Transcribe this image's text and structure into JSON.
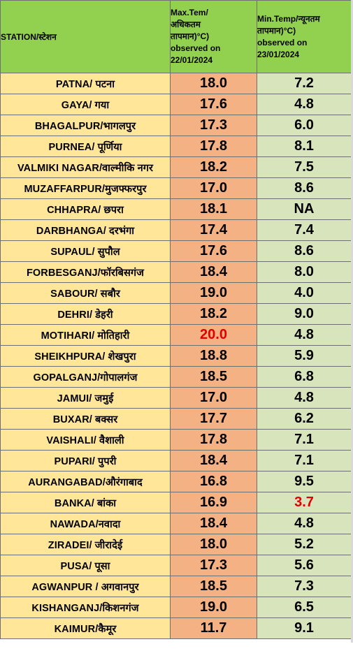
{
  "header": {
    "station": "STATION/स्टेशन",
    "max_lines": [
      "Max.Tem/",
      "अधिकतम",
      "तापमान)°C)",
      "observed on",
      "22/01/2024"
    ],
    "min_lines": [
      "Min.Temp/न्यूनतम",
      "तापमान)°C)",
      "observed on",
      "23/01/2024"
    ]
  },
  "rows": [
    {
      "station": "PATNA/ पटना",
      "max": "18.0",
      "min": "7.2"
    },
    {
      "station": "GAYA/ गया",
      "max": "17.6",
      "min": "4.8"
    },
    {
      "station": "BHAGALPUR/भागलपुर",
      "max": "17.3",
      "min": "6.0"
    },
    {
      "station": "PURNEA/ पूर्णिया",
      "max": "17.8",
      "min": "8.1"
    },
    {
      "station": "VALMIKI NAGAR/वाल्मीकि नगर",
      "max": "18.2",
      "min": "7.5"
    },
    {
      "station": "MUZAFFARPUR/मुजफ्फरपुर",
      "max": "17.0",
      "min": "8.6"
    },
    {
      "station": "CHHAPRA/ छपरा",
      "max": "18.1",
      "min": "NA"
    },
    {
      "station": "DARBHANGA/ दरभंगा",
      "max": "17.4",
      "min": "7.4"
    },
    {
      "station": "SUPAUL/ सुपौल",
      "max": "17.6",
      "min": "8.6"
    },
    {
      "station": "FORBESGANJ/फॉरबिसगंज",
      "max": "18.4",
      "min": "8.0"
    },
    {
      "station": "SABOUR/ सबौर",
      "max": "19.0",
      "min": "4.0"
    },
    {
      "station": "DEHRI/ डेहरी",
      "max": "18.2",
      "min": "9.0"
    },
    {
      "station": "MOTIHARI/ मोतिहारी",
      "max": "20.0",
      "min": "4.8"
    },
    {
      "station": "SHEIKHPURA/ शेखपुरा",
      "max": "18.8",
      "min": "5.9"
    },
    {
      "station": "GOPALGANJ/गोपालगंज",
      "max": "18.5",
      "min": "6.8"
    },
    {
      "station": "JAMUI/ जमुई",
      "max": "17.0",
      "min": "4.8"
    },
    {
      "station": "BUXAR/ बक्सर",
      "max": "17.7",
      "min": "6.2"
    },
    {
      "station": "VAISHALI/ वैशाली",
      "max": "17.8",
      "min": "7.1"
    },
    {
      "station": "PUPARI/ पुपरी",
      "max": "18.4",
      "min": "7.1"
    },
    {
      "station": "AURANGABAD/औरंगाबाद",
      "max": "16.8",
      "min": "9.5"
    },
    {
      "station": "BANKA/ बांका",
      "max": "16.9",
      "min": "3.7"
    },
    {
      "station": "NAWADA/नवादा",
      "max": "18.4",
      "min": "4.8"
    },
    {
      "station": "ZIRADEI/  जीरादेई",
      "max": "18.0",
      "min": "5.2"
    },
    {
      "station": "PUSA/  पूसा",
      "max": "17.3",
      "min": "5.6"
    },
    {
      "station": "AGWANPUR / अगवानपुर",
      "max": "18.5",
      "min": "7.3"
    },
    {
      "station": "KISHANGANJ/किशनगंज",
      "max": "19.0",
      "min": "6.5"
    },
    {
      "station": "KAIMUR/कैमूर",
      "max": "11.7",
      "min": "9.1"
    }
  ],
  "highlights": {
    "color": "#e00000",
    "max_row_index": 12,
    "min_row_index": 20
  }
}
